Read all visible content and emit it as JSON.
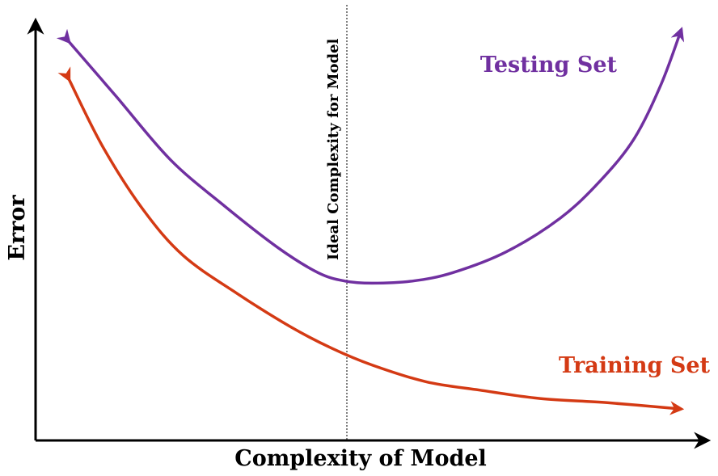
{
  "chart_data": {
    "type": "line",
    "xlabel": "Complexity of Model",
    "ylabel": "Error",
    "annotations": [
      {
        "text": "Ideal Complexity for Model",
        "kind": "vertical-dashed-line",
        "x": 0.5
      }
    ],
    "grid": false,
    "legend": "none",
    "x_ticks": "none",
    "y_ticks": "none",
    "colors": {
      "axis": "#000000",
      "testing": "#7030A0",
      "training": "#D43A14",
      "marker": "#000000"
    },
    "series": [
      {
        "name": "Testing Set",
        "color": "#7030A0",
        "x": [
          0.05,
          0.12,
          0.2,
          0.28,
          0.36,
          0.42,
          0.46,
          0.5,
          0.56,
          0.62,
          0.7,
          0.78,
          0.84,
          0.89,
          0.93,
          0.96
        ],
        "y": [
          0.95,
          0.82,
          0.67,
          0.56,
          0.46,
          0.4,
          0.38,
          0.375,
          0.38,
          0.4,
          0.45,
          0.53,
          0.62,
          0.72,
          0.85,
          0.98
        ]
      },
      {
        "name": "Training Set",
        "color": "#D43A14",
        "x": [
          0.05,
          0.1,
          0.16,
          0.22,
          0.3,
          0.38,
          0.44,
          0.5,
          0.58,
          0.66,
          0.75,
          0.85,
          0.96
        ],
        "y": [
          0.86,
          0.7,
          0.55,
          0.44,
          0.35,
          0.27,
          0.22,
          0.18,
          0.14,
          0.12,
          0.1,
          0.09,
          0.075
        ]
      }
    ]
  }
}
